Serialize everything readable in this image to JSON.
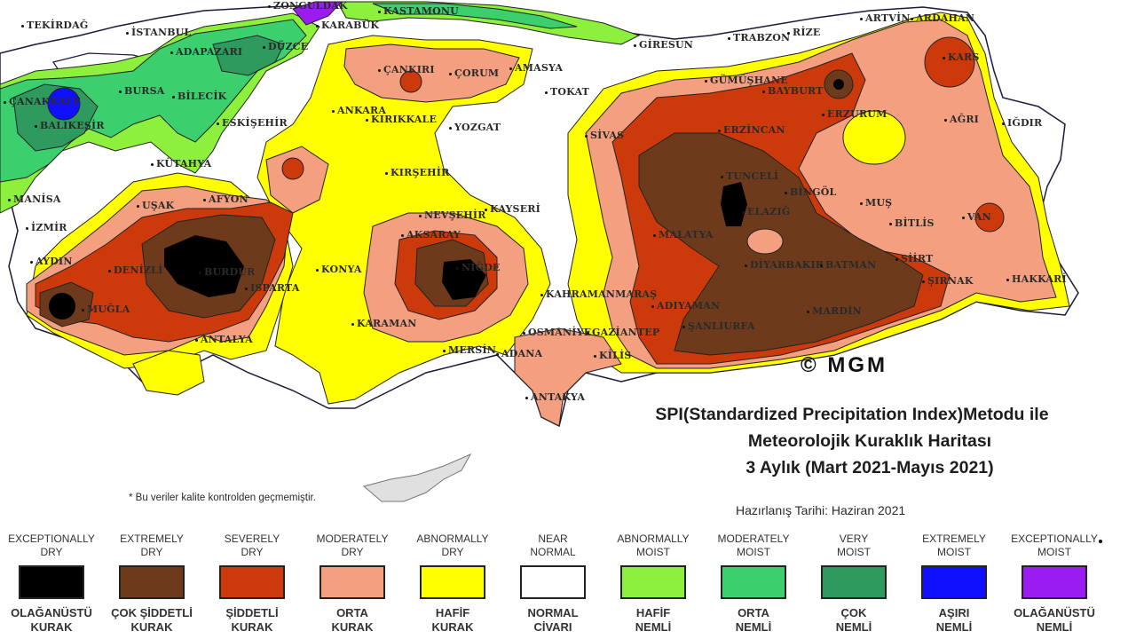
{
  "map": {
    "copyright": "© MGM",
    "cities": [
      {
        "name": "TEKİRDAĞ"
      },
      {
        "name": "İSTANBUL"
      },
      {
        "name": "ZONGULDAK"
      },
      {
        "name": "KARABÜK"
      },
      {
        "name": "KASTAMONU"
      },
      {
        "name": "ARTVİN"
      },
      {
        "name": "ARDAHAN"
      },
      {
        "name": "GİRESUN"
      },
      {
        "name": "TRABZON"
      },
      {
        "name": "RİZE"
      },
      {
        "name": "ADAPAZARI"
      },
      {
        "name": "DÜZCE"
      },
      {
        "name": "BİLECİK"
      },
      {
        "name": "BURSA"
      },
      {
        "name": "ÇANAKKALE"
      },
      {
        "name": "BALIKESİR"
      },
      {
        "name": "ESKİŞEHİR"
      },
      {
        "name": "KÜTAHYA"
      },
      {
        "name": "ÇANKIRI"
      },
      {
        "name": "ÇORUM"
      },
      {
        "name": "AMASYA"
      },
      {
        "name": "TOKAT"
      },
      {
        "name": "GÜMÜŞHANE"
      },
      {
        "name": "BAYBURT"
      },
      {
        "name": "KARS"
      },
      {
        "name": "ERZURUM"
      },
      {
        "name": "AĞRI"
      },
      {
        "name": "IĞDIR"
      },
      {
        "name": "ANKARA"
      },
      {
        "name": "KIRIKKALE"
      },
      {
        "name": "YOZGAT"
      },
      {
        "name": "SİVAS"
      },
      {
        "name": "ERZİNCAN"
      },
      {
        "name": "TUNCELİ"
      },
      {
        "name": "BİNGÖL"
      },
      {
        "name": "MUŞ"
      },
      {
        "name": "BİTLİS"
      },
      {
        "name": "VAN"
      },
      {
        "name": "MANİSA"
      },
      {
        "name": "İZMİR"
      },
      {
        "name": "UŞAK"
      },
      {
        "name": "AFYON"
      },
      {
        "name": "KIRŞEHİR"
      },
      {
        "name": "NEVŞEHİR"
      },
      {
        "name": "KAYSERİ"
      },
      {
        "name": "AYDIN"
      },
      {
        "name": "DENİZLİ"
      },
      {
        "name": "ISPARTA"
      },
      {
        "name": "MUĞLA"
      },
      {
        "name": "AKSARAY"
      },
      {
        "name": "KONYA"
      },
      {
        "name": "NİĞDE"
      },
      {
        "name": "MALATYA"
      },
      {
        "name": "ELAZIĞ"
      },
      {
        "name": "DİYARBAKIR"
      },
      {
        "name": "BATMAN"
      },
      {
        "name": "SİİRT"
      },
      {
        "name": "ŞIRNAK"
      },
      {
        "name": "HAKKARİ"
      },
      {
        "name": "KAHRAMANMARAŞ"
      },
      {
        "name": "ADIYAMAN"
      },
      {
        "name": "ŞANLIURFA"
      },
      {
        "name": "MARDİN"
      },
      {
        "name": "ANTALYA"
      },
      {
        "name": "KARAMAN"
      },
      {
        "name": "OSMANİYE"
      },
      {
        "name": "GAZİANTEP"
      },
      {
        "name": "KİLİS"
      },
      {
        "name": "MERSİN"
      },
      {
        "name": "ADANA"
      },
      {
        "name": "ANTAKYA"
      },
      {
        "name": "BURDUR"
      }
    ]
  },
  "title": {
    "line1": "SPI(Standardized Precipitation Index)Metodu ile",
    "line2": "Meteorolojik Kuraklık Haritası",
    "line3": "3 Aylık (Mart 2021-Mayıs 2021)",
    "prepared": "Hazırlanış Tarihi: Haziran 2021"
  },
  "note": "* Bu veriler kalite kontrolden geçmemiştir.",
  "legend": [
    {
      "en": "EXCEPTIONALLY DRY",
      "en1": "EXCEPTIONALLY",
      "en2": "DRY",
      "tr1": "OLAĞANÜSTÜ",
      "tr2": "KURAK",
      "color": "#000000"
    },
    {
      "en1": "EXTREMELY",
      "en2": "DRY",
      "tr1": "ÇOK ŞİDDETLİ",
      "tr2": "KURAK",
      "color": "#6e3a1c"
    },
    {
      "en1": "SEVERELY",
      "en2": "DRY",
      "tr1": "ŞİDDETLİ",
      "tr2": "KURAK",
      "color": "#cc3a0c"
    },
    {
      "en1": "MODERATELY",
      "en2": "DRY",
      "tr1": "ORTA",
      "tr2": "KURAK",
      "color": "#f4a080"
    },
    {
      "en1": "ABNORMALLY",
      "en2": "DRY",
      "tr1": "HAFİF",
      "tr2": "KURAK",
      "color": "#ffff00"
    },
    {
      "en1": "NEAR",
      "en2": "NORMAL",
      "tr1": "NORMAL",
      "tr2": "CİVARI",
      "color": "#ffffff"
    },
    {
      "en1": "ABNORMALLY",
      "en2": "MOIST",
      "tr1": "HAFİF",
      "tr2": "NEMLİ",
      "color": "#8cf03c"
    },
    {
      "en1": "MODERATELY",
      "en2": "MOIST",
      "tr1": "ORTA",
      "tr2": "NEMLİ",
      "color": "#3ccf6e"
    },
    {
      "en1": "VERY",
      "en2": "MOIST",
      "tr1": "ÇOK",
      "tr2": "NEMLİ",
      "color": "#2e9a5e"
    },
    {
      "en1": "EXTREMELY",
      "en2": "MOIST",
      "tr1": "AŞIRI",
      "tr2": "NEMLİ",
      "color": "#1010ff"
    },
    {
      "en1": "EXCEPTIONALLY",
      "en2": "MOIST",
      "tr1": "OLAĞANÜSTÜ",
      "tr2": "NEMLİ",
      "color": "#9b1cf0"
    }
  ]
}
